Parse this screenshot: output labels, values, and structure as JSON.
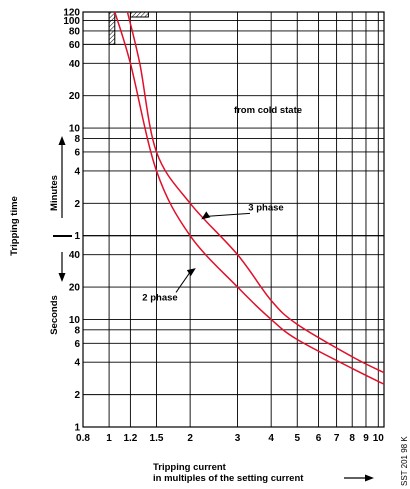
{
  "chart_data": {
    "type": "line",
    "title": "",
    "xlabel": [
      "Tripping current",
      "in multiples of the setting current"
    ],
    "ylabel": "Tripping time",
    "ylabel_units": [
      "Seconds",
      "Minutes"
    ],
    "x_scale": "log",
    "y_scale": "log",
    "xlim": [
      0.8,
      10.5
    ],
    "x_ticks": [
      0.8,
      1,
      1.2,
      1.5,
      2,
      3,
      4,
      5,
      6,
      7,
      8,
      9,
      10
    ],
    "x_tick_labels": [
      "0.8",
      "1",
      "1.2",
      "1.5",
      "2",
      "3",
      "4",
      "5",
      "6",
      "7",
      "8",
      "9",
      "10"
    ],
    "y_seconds_ticks": [
      1,
      2,
      4,
      6,
      8,
      10,
      20,
      40
    ],
    "y_minutes_ticks": [
      1,
      2,
      4,
      6,
      8,
      10,
      20,
      40,
      60,
      80,
      100,
      120
    ],
    "series": [
      {
        "name": "3 phase",
        "points": [
          [
            1.17,
            7200
          ],
          [
            1.3,
            2400
          ],
          [
            1.5,
            360
          ],
          [
            2,
            120
          ],
          [
            3,
            40
          ],
          [
            4,
            15
          ],
          [
            5,
            9
          ],
          [
            8,
            4.5
          ],
          [
            10.5,
            3.2
          ]
        ]
      },
      {
        "name": "2 phase",
        "points": [
          [
            1.05,
            7200
          ],
          [
            1.2,
            2400
          ],
          [
            1.5,
            240
          ],
          [
            2,
            60
          ],
          [
            3,
            20
          ],
          [
            4,
            10
          ],
          [
            5,
            6.5
          ],
          [
            8,
            3.5
          ],
          [
            10.5,
            2.5
          ]
        ]
      }
    ],
    "annotations": [
      "from cold state",
      "3 phase",
      "2 phase"
    ],
    "hatched_tolerance_boxes": [
      {
        "x": [
          1.0,
          1.05
        ],
        "y_minutes": [
          60,
          120
        ]
      },
      {
        "x": [
          1.2,
          1.4
        ],
        "y_minutes": [
          120,
          125
        ]
      }
    ],
    "curve_color": "#e0102a",
    "grid": true,
    "code": "SST 201 98 K"
  }
}
